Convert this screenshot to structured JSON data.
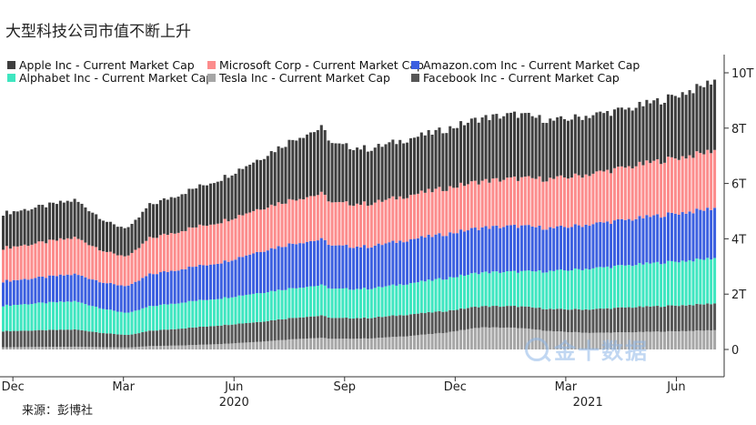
{
  "chart_data": {
    "type": "area",
    "title": "大型科技公司市值不断上升",
    "source": "来源：彭博社",
    "xlabel": "",
    "ylabel": "",
    "y_unit": "T",
    "ylim": [
      0,
      10.5
    ],
    "y_ticks": [
      {
        "value": 0,
        "label": "0"
      },
      {
        "value": 2,
        "label": "2T"
      },
      {
        "value": 4,
        "label": "4T"
      },
      {
        "value": 6,
        "label": "6T"
      },
      {
        "value": 8,
        "label": "8T"
      },
      {
        "value": 10,
        "label": "10T"
      }
    ],
    "x_month_range": [
      0,
      19.4
    ],
    "x_ticks": [
      {
        "month": 0.3,
        "label": "Dec"
      },
      {
        "month": 3.3,
        "label": "Mar"
      },
      {
        "month": 6.3,
        "label": "Jun"
      },
      {
        "month": 9.3,
        "label": "Sep"
      },
      {
        "month": 12.3,
        "label": "Dec"
      },
      {
        "month": 15.3,
        "label": "Mar"
      },
      {
        "month": 18.3,
        "label": "Jun"
      }
    ],
    "x_year_labels": [
      {
        "month": 6.3,
        "label": "2020"
      },
      {
        "month": 15.9,
        "label": "2021"
      }
    ],
    "x_months": [
      0,
      1,
      2,
      3,
      3.5,
      4,
      5,
      6,
      7,
      8,
      8.7,
      9,
      10,
      11,
      12,
      13,
      14,
      15,
      16,
      17,
      18,
      19,
      19.4
    ],
    "series": [
      {
        "name": "Tesla Inc - Current Market Cap",
        "color": "#a6a6a6",
        "values": [
          0.08,
          0.09,
          0.1,
          0.08,
          0.07,
          0.12,
          0.15,
          0.2,
          0.28,
          0.38,
          0.42,
          0.38,
          0.4,
          0.48,
          0.6,
          0.8,
          0.78,
          0.65,
          0.6,
          0.62,
          0.65,
          0.68,
          0.7
        ]
      },
      {
        "name": "Facebook Inc - Current Market Cap",
        "color": "#565656",
        "values": [
          0.58,
          0.6,
          0.62,
          0.48,
          0.45,
          0.55,
          0.62,
          0.68,
          0.72,
          0.78,
          0.8,
          0.75,
          0.74,
          0.78,
          0.78,
          0.76,
          0.78,
          0.8,
          0.85,
          0.9,
          0.92,
          0.95,
          0.97
        ]
      },
      {
        "name": "Alphabet Inc - Current Market Cap",
        "color": "#3fe6c0",
        "values": [
          0.92,
          0.98,
          1.02,
          0.84,
          0.8,
          0.88,
          0.95,
          0.98,
          1.05,
          1.08,
          1.1,
          1.05,
          1.06,
          1.12,
          1.18,
          1.22,
          1.25,
          1.38,
          1.48,
          1.52,
          1.58,
          1.62,
          1.65
        ]
      },
      {
        "name": "Amazon.com Inc - Current Market Cap",
        "color": "#3b5fe0",
        "values": [
          0.88,
          0.92,
          0.98,
          0.95,
          0.98,
          1.15,
          1.22,
          1.3,
          1.5,
          1.62,
          1.65,
          1.55,
          1.52,
          1.58,
          1.6,
          1.62,
          1.65,
          1.55,
          1.6,
          1.65,
          1.72,
          1.78,
          1.82
        ]
      },
      {
        "name": "Microsoft Corp - Current Market Cap",
        "color": "#fc8c8c",
        "values": [
          1.2,
          1.25,
          1.32,
          1.1,
          1.08,
          1.3,
          1.4,
          1.48,
          1.55,
          1.6,
          1.65,
          1.55,
          1.55,
          1.6,
          1.65,
          1.68,
          1.72,
          1.78,
          1.82,
          1.9,
          1.98,
          2.05,
          2.1
        ]
      },
      {
        "name": "Apple Inc - Current Market Cap",
        "color": "#3e3e3e",
        "values": [
          1.25,
          1.3,
          1.36,
          1.05,
          1.02,
          1.2,
          1.36,
          1.56,
          1.8,
          2.2,
          2.38,
          2.12,
          1.98,
          2.04,
          2.12,
          2.28,
          2.32,
          2.1,
          2.12,
          2.1,
          2.2,
          2.42,
          2.56
        ]
      }
    ],
    "legend": [
      {
        "name": "Apple Inc - Current Market Cap",
        "color": "#3e3e3e"
      },
      {
        "name": "Microsoft Corp - Current Market Cap",
        "color": "#fc8c8c"
      },
      {
        "name": "Amazon.com Inc - Current Market Cap",
        "color": "#3b5fe0"
      },
      {
        "name": "Alphabet Inc - Current Market Cap",
        "color": "#3fe6c0"
      },
      {
        "name": "Tesla Inc - Current Market Cap",
        "color": "#a6a6a6"
      },
      {
        "name": "Facebook Inc - Current Market Cap",
        "color": "#565656"
      }
    ],
    "legend_position": "top-left",
    "grid": false
  },
  "watermark": {
    "text": "金十数据",
    "icon": "search-magnifier-icon"
  }
}
